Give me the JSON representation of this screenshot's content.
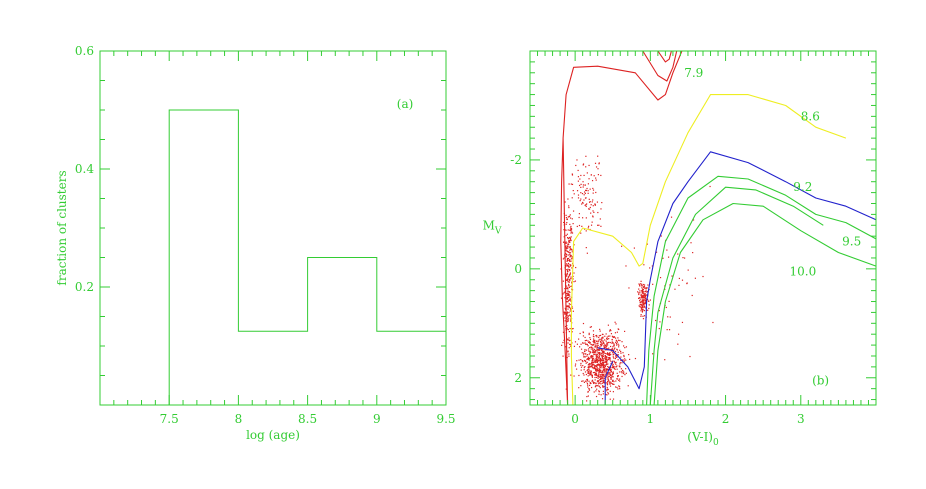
{
  "colors": {
    "axis": "#33cc33",
    "red": "#dd2222",
    "yellow": "#eeee22",
    "blue": "#2222cc",
    "green": "#33cc33"
  },
  "chart_data": [
    {
      "type": "histogram",
      "panel_label": "(a)",
      "xlabel": "log (age)",
      "ylabel": "fraction of clusters",
      "xlim": [
        7.0,
        9.5
      ],
      "ylim": [
        0.0,
        0.6
      ],
      "xticks": [
        "7.5",
        "8",
        "8.5",
        "9",
        "9.5"
      ],
      "yticks": [
        "0.2",
        "0.4",
        "0.6"
      ],
      "bins": [
        {
          "x0": 7.5,
          "x1": 8.0,
          "value": 0.5
        },
        {
          "x0": 8.0,
          "x1": 8.5,
          "value": 0.125
        },
        {
          "x0": 8.5,
          "x1": 9.0,
          "value": 0.25
        },
        {
          "x0": 9.0,
          "x1": 9.5,
          "value": 0.125
        }
      ]
    },
    {
      "type": "scatter+line",
      "panel_label": "(b)",
      "xlabel": "(V-I)",
      "xlabel_sub": "0",
      "ylabel": "M",
      "ylabel_sub": "V",
      "xlim": [
        -0.6,
        4.0
      ],
      "ylim": [
        2.5,
        -4.0
      ],
      "xticks": [
        "0",
        "1",
        "2",
        "3"
      ],
      "yticks": [
        "-2",
        "0",
        "2"
      ],
      "isochrones": [
        {
          "label": "7.9",
          "color": "red",
          "points": [
            [
              -0.16,
              -2.4
            ],
            [
              -0.18,
              -1.6
            ],
            [
              -0.19,
              -0.5
            ],
            [
              -0.17,
              0.5
            ],
            [
              -0.13,
              1.6
            ],
            [
              -0.1,
              2.5
            ],
            [
              -0.16,
              -2.4
            ],
            [
              -0.12,
              -3.2
            ],
            [
              -0.02,
              -3.7
            ],
            [
              0.3,
              -3.72
            ],
            [
              0.8,
              -3.6
            ],
            [
              1.1,
              -3.1
            ],
            [
              1.2,
              -3.2
            ],
            [
              1.3,
              -3.6
            ],
            [
              1.42,
              -4.0
            ]
          ]
        },
        {
          "label": "7.9b",
          "color": "red",
          "points": [
            [
              0.9,
              -4.0
            ],
            [
              1.1,
              -3.55
            ],
            [
              1.22,
              -3.45
            ],
            [
              1.3,
              -3.7
            ],
            [
              1.35,
              -4.0
            ]
          ]
        },
        {
          "label": "7.9c",
          "color": "red",
          "points": [
            [
              1.1,
              -4.0
            ],
            [
              1.2,
              -3.8
            ],
            [
              1.25,
              -3.85
            ],
            [
              1.28,
              -4.0
            ]
          ]
        },
        {
          "label": "8.6",
          "color": "yellow",
          "points": [
            [
              -0.03,
              2.5
            ],
            [
              -0.05,
              1.6
            ],
            [
              -0.05,
              0.8
            ],
            [
              -0.02,
              -0.5
            ],
            [
              0.1,
              -0.75
            ],
            [
              0.5,
              -0.6
            ],
            [
              0.75,
              -0.3
            ],
            [
              0.85,
              -0.05
            ],
            [
              0.9,
              -0.1
            ],
            [
              1.0,
              -0.8
            ],
            [
              1.2,
              -1.6
            ],
            [
              1.5,
              -2.5
            ],
            [
              1.8,
              -3.2
            ],
            [
              2.3,
              -3.2
            ],
            [
              2.8,
              -3.0
            ],
            [
              3.2,
              -2.6
            ],
            [
              3.6,
              -2.4
            ]
          ]
        },
        {
          "label": "9.2",
          "color": "blue",
          "points": [
            [
              0.3,
              1.45
            ],
            [
              0.5,
              1.5
            ],
            [
              0.7,
              1.8
            ],
            [
              0.85,
              2.2
            ],
            [
              0.92,
              1.8
            ],
            [
              0.95,
              0.6
            ],
            [
              1.0,
              0.2
            ],
            [
              1.1,
              -0.5
            ],
            [
              1.3,
              -1.2
            ],
            [
              1.5,
              -1.6
            ],
            [
              1.8,
              -2.15
            ],
            [
              2.3,
              -1.95
            ],
            [
              2.8,
              -1.6
            ],
            [
              3.2,
              -1.3
            ],
            [
              3.6,
              -1.15
            ],
            [
              4.0,
              -0.9
            ]
          ]
        },
        {
          "label": "9.2b",
          "color": "blue",
          "points": [
            [
              0.4,
              2.5
            ],
            [
              0.4,
              2.0
            ],
            [
              0.5,
              1.7
            ]
          ]
        },
        {
          "label": "9.5",
          "color": "green",
          "points": [
            [
              0.95,
              2.5
            ],
            [
              0.98,
              1.5
            ],
            [
              1.05,
              0.5
            ],
            [
              1.2,
              -0.5
            ],
            [
              1.5,
              -1.3
            ],
            [
              1.9,
              -1.7
            ],
            [
              2.3,
              -1.65
            ],
            [
              2.8,
              -1.35
            ],
            [
              3.2,
              -1.0
            ],
            [
              3.6,
              -0.85
            ],
            [
              4.0,
              -0.55
            ]
          ]
        },
        {
          "label": "9.5b",
          "color": "green",
          "points": [
            [
              1.0,
              2.5
            ],
            [
              1.05,
              1.5
            ],
            [
              1.1,
              0.8
            ],
            [
              1.3,
              -0.2
            ],
            [
              1.6,
              -1.0
            ],
            [
              2.0,
              -1.5
            ],
            [
              2.4,
              -1.45
            ],
            [
              2.9,
              -1.15
            ],
            [
              3.3,
              -0.8
            ]
          ]
        },
        {
          "label": "10.0",
          "color": "green",
          "points": [
            [
              1.05,
              2.5
            ],
            [
              1.1,
              1.5
            ],
            [
              1.2,
              0.6
            ],
            [
              1.4,
              -0.3
            ],
            [
              1.7,
              -0.9
            ],
            [
              2.1,
              -1.2
            ],
            [
              2.5,
              -1.15
            ],
            [
              3.0,
              -0.7
            ],
            [
              3.5,
              -0.3
            ],
            [
              4.0,
              -0.05
            ]
          ]
        }
      ],
      "isochrone_labels": [
        {
          "text": "7.9",
          "x": 1.45,
          "y": -3.6
        },
        {
          "text": "8.6",
          "x": 3.0,
          "y": -2.8
        },
        {
          "text": "9.2",
          "x": 2.9,
          "y": -1.5
        },
        {
          "text": "9.5",
          "x": 3.55,
          "y": -0.5
        },
        {
          "text": "10.0",
          "x": 2.85,
          "y": 0.05
        }
      ]
    }
  ]
}
